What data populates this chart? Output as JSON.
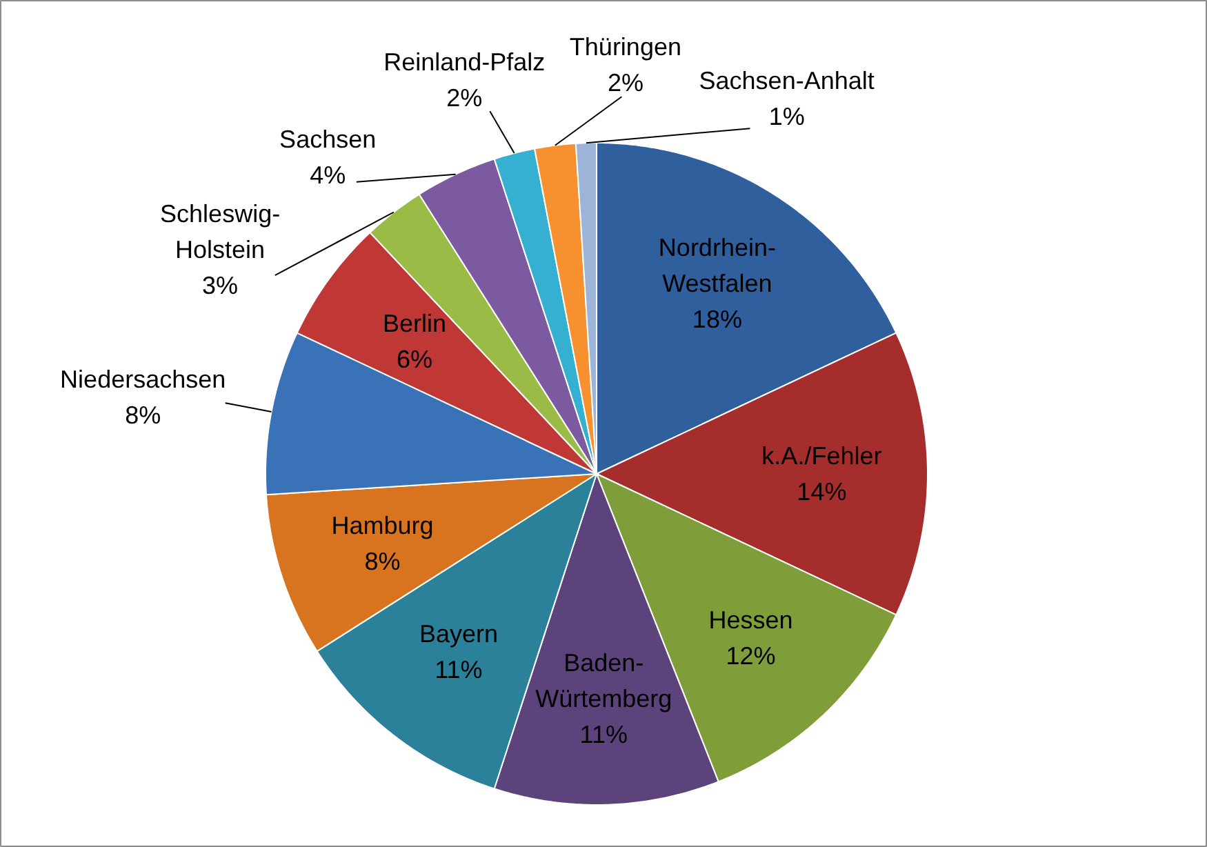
{
  "chart_data": {
    "type": "pie",
    "categories": [
      "Nordrhein-Westfalen",
      "k.A./Fehler",
      "Hessen",
      "Baden-Würtemberg",
      "Bayern",
      "Hamburg",
      "Niedersachsen",
      "Berlin",
      "Schleswig-Holstein",
      "Sachsen",
      "Reinland-Pfalz",
      "Thüringen",
      "Sachsen-Anhalt"
    ],
    "values": [
      18,
      14,
      12,
      11,
      11,
      8,
      8,
      6,
      3,
      4,
      2,
      2,
      1
    ],
    "colors": [
      "#2f5f9c",
      "#a52e2c",
      "#7f9e3a",
      "#5c437c",
      "#2a8199",
      "#d8731f",
      "#3a72b8",
      "#bf3835",
      "#9bbb47",
      "#7c5aa0",
      "#35b0d0",
      "#f7902e",
      "#9db3d8"
    ],
    "value_labels": [
      "18%",
      "14%",
      "12%",
      "11%",
      "11%",
      "8%",
      "8%",
      "6%",
      "3%",
      "4%",
      "2%",
      "2%",
      "1%"
    ]
  }
}
